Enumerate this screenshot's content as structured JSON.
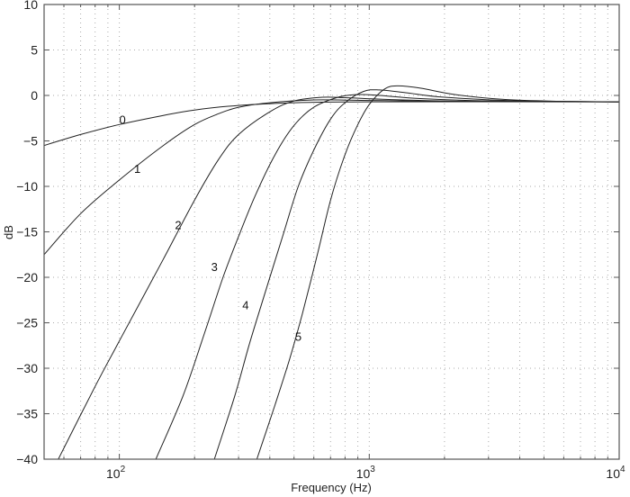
{
  "chart_data": {
    "type": "line",
    "title": "",
    "xlabel": "Frequency (Hz)",
    "ylabel": "dB",
    "xscale": "log",
    "xlim": [
      50,
      10000
    ],
    "ylim": [
      -40,
      10
    ],
    "grid": true,
    "x_ticks": [
      {
        "base": "10",
        "exp": "2",
        "value": 100
      },
      {
        "base": "10",
        "exp": "3",
        "value": 1000
      },
      {
        "base": "10",
        "exp": "4",
        "value": 10000
      }
    ],
    "y_ticks": [
      "10",
      "5",
      "0",
      "-5",
      "-10",
      "-15",
      "-20",
      "-25",
      "-30",
      "-35",
      "-40"
    ],
    "series": [
      {
        "name": "0",
        "label_pos": [
          103,
          -2.6
        ],
        "points": [
          [
            50,
            -5.5
          ],
          [
            70,
            -4.3
          ],
          [
            100,
            -3.2
          ],
          [
            150,
            -2.2
          ],
          [
            200,
            -1.6
          ],
          [
            300,
            -1.1
          ],
          [
            500,
            -0.8
          ],
          [
            1000,
            -0.7
          ],
          [
            10000,
            -0.7
          ]
        ]
      },
      {
        "name": "1",
        "label_pos": [
          118,
          -8
        ],
        "points": [
          [
            50,
            -17.5
          ],
          [
            70,
            -13
          ],
          [
            100,
            -9.3
          ],
          [
            150,
            -5.5
          ],
          [
            200,
            -3.2
          ],
          [
            250,
            -2
          ],
          [
            300,
            -1.3
          ],
          [
            400,
            -0.8
          ],
          [
            600,
            -0.5
          ],
          [
            1000,
            -0.55
          ],
          [
            2000,
            -0.65
          ],
          [
            10000,
            -0.7
          ]
        ]
      },
      {
        "name": "2",
        "label_pos": [
          172,
          -14.2
        ],
        "points": [
          [
            57,
            -40
          ],
          [
            80,
            -32
          ],
          [
            100,
            -27
          ],
          [
            150,
            -18
          ],
          [
            200,
            -11.5
          ],
          [
            250,
            -7
          ],
          [
            300,
            -4.3
          ],
          [
            400,
            -1.8
          ],
          [
            500,
            -0.6
          ],
          [
            650,
            -0.2
          ],
          [
            800,
            -0.25
          ],
          [
            1200,
            -0.45
          ],
          [
            2500,
            -0.65
          ],
          [
            10000,
            -0.7
          ]
        ]
      },
      {
        "name": "3",
        "label_pos": [
          240,
          -18.8
        ],
        "points": [
          [
            140,
            -40
          ],
          [
            180,
            -33
          ],
          [
            220,
            -26
          ],
          [
            260,
            -20
          ],
          [
            300,
            -15.5
          ],
          [
            350,
            -11
          ],
          [
            420,
            -6.5
          ],
          [
            500,
            -3.3
          ],
          [
            600,
            -1.3
          ],
          [
            750,
            -0.2
          ],
          [
            900,
            0.1
          ],
          [
            1100,
            0
          ],
          [
            1600,
            -0.35
          ],
          [
            3000,
            -0.6
          ],
          [
            10000,
            -0.7
          ]
        ]
      },
      {
        "name": "4",
        "label_pos": [
          320,
          -23
        ],
        "points": [
          [
            240,
            -40
          ],
          [
            290,
            -33
          ],
          [
            330,
            -27.5
          ],
          [
            380,
            -22
          ],
          [
            450,
            -15.5
          ],
          [
            520,
            -10
          ],
          [
            600,
            -6
          ],
          [
            700,
            -2.6
          ],
          [
            800,
            -0.8
          ],
          [
            950,
            0.45
          ],
          [
            1100,
            0.6
          ],
          [
            1400,
            0.3
          ],
          [
            2000,
            -0.2
          ],
          [
            4000,
            -0.6
          ],
          [
            10000,
            -0.7
          ]
        ]
      },
      {
        "name": "5",
        "label_pos": [
          520,
          -26.5
        ],
        "points": [
          [
            355,
            -40
          ],
          [
            420,
            -34
          ],
          [
            480,
            -29
          ],
          [
            540,
            -24
          ],
          [
            620,
            -17.5
          ],
          [
            700,
            -11.5
          ],
          [
            800,
            -6.5
          ],
          [
            900,
            -3.2
          ],
          [
            1000,
            -1
          ],
          [
            1150,
            0.7
          ],
          [
            1300,
            1.05
          ],
          [
            1600,
            0.8
          ],
          [
            2200,
            0.1
          ],
          [
            3500,
            -0.45
          ],
          [
            6000,
            -0.65
          ],
          [
            10000,
            -0.7
          ]
        ]
      }
    ]
  }
}
